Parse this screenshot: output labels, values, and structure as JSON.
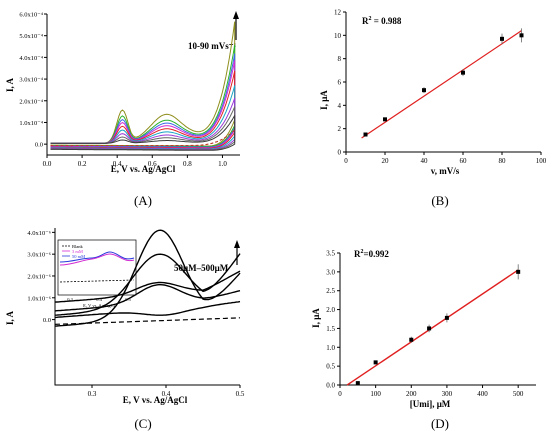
{
  "chart_data": [
    {
      "id": "A",
      "type": "line",
      "panel_label": "(A)",
      "xlabel": "E, V vs. Ag/AgCl",
      "ylabel": "I, A",
      "xlim": [
        0.0,
        1.1
      ],
      "ylim": [
        -5e-05,
        0.0006
      ],
      "xticks": [
        "0.0",
        "0.2",
        "0.4",
        "0.6",
        "0.8",
        "1.0"
      ],
      "yticks": [
        "0.0",
        "1.0x10⁻⁴",
        "2.0x10⁻⁴",
        "3.0x10⁻⁴",
        "4.0x10⁻⁴",
        "5.0x10⁻⁴",
        "6.0x10⁻⁴"
      ],
      "annotation": "10-90 mVs⁻¹",
      "grid": false,
      "series": [
        {
          "color": "#8e8e1c",
          "values": [
            0.00018,
            0.000168,
            0.00058
          ]
        },
        {
          "color": "#2bb32b",
          "values": [
            0.000148,
            0.000134,
            0.00047
          ]
        },
        {
          "color": "#3a6ae8",
          "values": [
            0.000128,
            0.000117,
            0.00043
          ]
        },
        {
          "color": "#d22ad2",
          "values": [
            0.000112,
            0.000102,
            0.0004
          ]
        },
        {
          "color": "#e02222",
          "values": [
            9.2e-05,
            8.4e-05,
            0.00035
          ]
        },
        {
          "color": "#19a6c4",
          "values": [
            7.2e-05,
            6.6e-05,
            0.00028
          ]
        },
        {
          "color": "#9a3ad8",
          "values": [
            5.2e-05,
            4.8e-05,
            0.00022
          ]
        },
        {
          "color": "#666666",
          "values": [
            3.4e-05,
            3.2e-05,
            0.00018
          ]
        },
        {
          "color": "#3a3a3a",
          "values": [
            1.8e-05,
            1.6e-05,
            0.00014
          ]
        }
      ],
      "blank": {
        "color": "#c0392b"
      }
    },
    {
      "id": "B",
      "type": "scatter",
      "panel_label": "(B)",
      "xlabel": "v, mV/s",
      "ylabel": "I, μA",
      "xlim": [
        0,
        100
      ],
      "ylim": [
        0,
        12
      ],
      "xticks": [
        0,
        20,
        40,
        60,
        80,
        100
      ],
      "yticks": [
        0,
        2,
        4,
        6,
        8,
        10,
        12
      ],
      "annotation": "R² = 0.988",
      "points": [
        {
          "x": 10,
          "y": 1.5,
          "err": 0.1
        },
        {
          "x": 20,
          "y": 2.8,
          "err": 0.15
        },
        {
          "x": 40,
          "y": 5.3,
          "err": 0.25
        },
        {
          "x": 60,
          "y": 6.8,
          "err": 0.3
        },
        {
          "x": 80,
          "y": 9.7,
          "err": 0.45
        },
        {
          "x": 90,
          "y": 10.0,
          "err": 0.6
        }
      ],
      "fit": {
        "x": [
          8,
          90
        ],
        "y": [
          1.2,
          10.4
        ],
        "color": "#e02020"
      }
    },
    {
      "id": "C",
      "type": "line",
      "panel_label": "(C)",
      "xlabel": "E, V vs. Ag/AgCl",
      "ylabel": "I, A",
      "xlim": [
        0.25,
        0.5
      ],
      "ylim": [
        -3e-06,
        4.2e-06
      ],
      "xticks": [
        "0.3",
        "0.4",
        "0.5"
      ],
      "yticks": [
        "0.0",
        "1.0x10⁻⁶",
        "2.0x10⁻⁶",
        "3.0x10⁻⁶",
        "4.0x10⁻⁶"
      ],
      "annotation": "50μM–500μM",
      "grid": false,
      "series": [
        {
          "color": "#000000",
          "values": [
            4.1e-06
          ]
        },
        {
          "color": "#000000",
          "values": [
            3e-06
          ]
        },
        {
          "color": "#000000",
          "values": [
            1.7e-06
          ]
        },
        {
          "color": "#000000",
          "values": [
            1.6e-06
          ]
        },
        {
          "color": "#000000",
          "values": [
            2e-07
          ]
        }
      ],
      "blank": {
        "color": "#000000"
      },
      "inset": {
        "legend": [
          "Blank",
          "3 mM",
          "50 mM"
        ],
        "xticks": [
          "0.3",
          "0.4",
          "0.5"
        ],
        "xlabel": "E, V vs. Ag/AgCl"
      }
    },
    {
      "id": "D",
      "type": "scatter",
      "panel_label": "(D)",
      "xlabel": "[Umi], μM",
      "ylabel": "I, μA",
      "xlim": [
        0,
        550
      ],
      "ylim": [
        0,
        3.5
      ],
      "xticks": [
        0,
        100,
        200,
        300,
        400,
        500
      ],
      "yticks": [
        "0.0",
        "0.5",
        "1.0",
        "1.5",
        "2.0",
        "2.5",
        "3.0",
        "3.5"
      ],
      "annotation": "R²=0.992",
      "points": [
        {
          "x": 50,
          "y": 0.05,
          "err": 0.02
        },
        {
          "x": 100,
          "y": 0.6,
          "err": 0.05
        },
        {
          "x": 200,
          "y": 1.2,
          "err": 0.08
        },
        {
          "x": 250,
          "y": 1.5,
          "err": 0.1
        },
        {
          "x": 300,
          "y": 1.78,
          "err": 0.12
        },
        {
          "x": 500,
          "y": 3.0,
          "err": 0.2
        }
      ],
      "fit": {
        "x": [
          20,
          500
        ],
        "y": [
          0.0,
          3.05
        ],
        "color": "#e02020"
      }
    }
  ]
}
